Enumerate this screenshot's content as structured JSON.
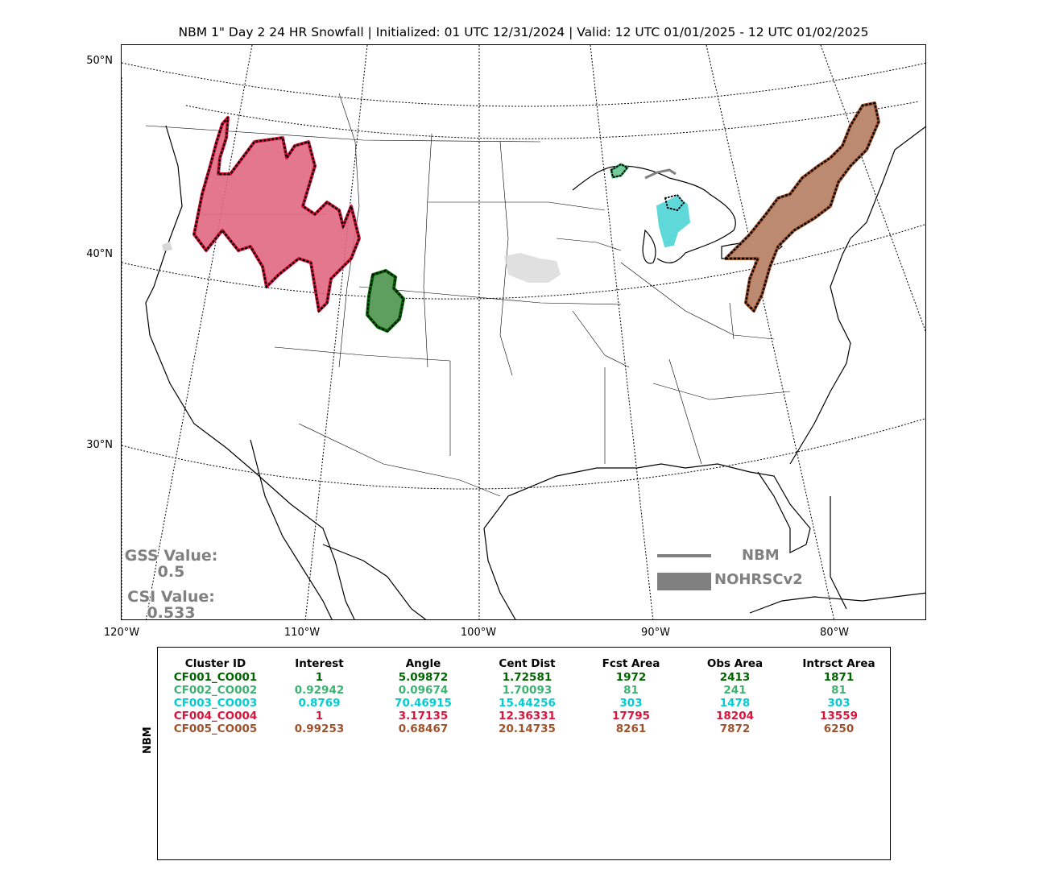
{
  "title": "NBM 1\" Day 2 24 HR Snowfall | Initialized: 01 UTC 12/31/2024 | Valid: 12 UTC 01/01/2025 - 12 UTC 01/02/2025",
  "lat_labels": [
    "50°N",
    "40°N",
    "30°N"
  ],
  "lon_labels": [
    "120°W",
    "110°W",
    "100°W",
    "90°W",
    "80°W"
  ],
  "scores": {
    "gss_label": "GSS Value:",
    "gss_value": "0.5",
    "csi_label": "CSI Value:",
    "csi_value": "0.533"
  },
  "legend": {
    "forecast_label": "NBM",
    "observed_label": "NOHRSCv2",
    "color": "#808080"
  },
  "table": {
    "row_axis_label": "NBM",
    "columns": [
      "Cluster ID",
      "Interest",
      "Angle",
      "Cent Dist",
      "Fcst Area",
      "Obs Area",
      "Intrsct Area"
    ],
    "rows": [
      {
        "color": "#006400",
        "cells": [
          "CF001_CO001",
          "1",
          "5.09872",
          "1.72581",
          "1972",
          "2413",
          "1871"
        ]
      },
      {
        "color": "#3cb371",
        "cells": [
          "CF002_CO002",
          "0.92942",
          "0.09674",
          "1.70093",
          "81",
          "241",
          "81"
        ]
      },
      {
        "color": "#00ced1",
        "cells": [
          "CF003_CO003",
          "0.8769",
          "70.46915",
          "15.44256",
          "303",
          "1478",
          "303"
        ]
      },
      {
        "color": "#dc143c",
        "cells": [
          "CF004_CO004",
          "1",
          "3.17135",
          "12.36331",
          "17795",
          "18204",
          "13559"
        ]
      },
      {
        "color": "#a0522d",
        "cells": [
          "CF005_CO005",
          "0.99253",
          "0.68467",
          "20.14735",
          "8261",
          "7872",
          "6250"
        ]
      }
    ]
  },
  "clusters": [
    {
      "id": "CF001_CO001",
      "color": "#006400",
      "fill": "#5e9e5e"
    },
    {
      "id": "CF002_CO002",
      "color": "#3cb371",
      "fill": "#76c99a"
    },
    {
      "id": "CF003_CO003",
      "color": "#00ced1",
      "fill": "#5fd8da"
    },
    {
      "id": "CF004_CO004",
      "color": "#dc143c",
      "fill": "#e06882"
    },
    {
      "id": "CF005_CO005",
      "color": "#a0522d",
      "fill": "#bb8a70"
    }
  ]
}
